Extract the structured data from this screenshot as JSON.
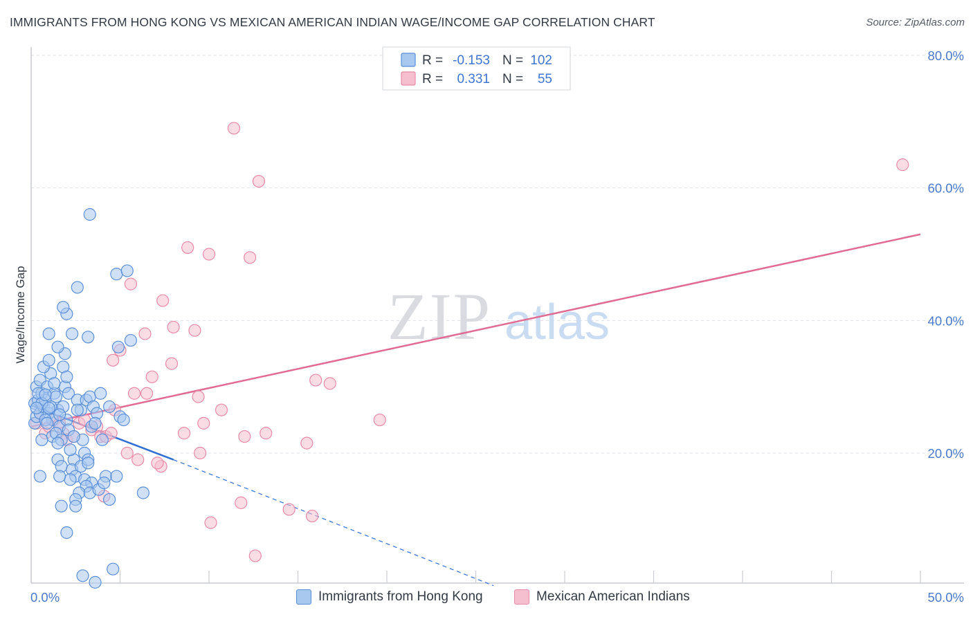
{
  "title": "IMMIGRANTS FROM HONG KONG VS MEXICAN AMERICAN INDIAN WAGE/INCOME GAP CORRELATION CHART",
  "source": "Source: ZipAtlas.com",
  "watermark": {
    "zip": "ZIP",
    "atlas": "atlas"
  },
  "colors": {
    "blue_fill": "#a9c8f0",
    "blue_stroke": "#5a8fd8",
    "blue_line": "#2f6fd1",
    "pink_fill": "#f6bfd0",
    "pink_stroke": "#e88aa7",
    "pink_line": "#e06b93",
    "axis_label": "#4a7ac9",
    "grid": "#dcdfe4"
  },
  "stats_box": {
    "rows": [
      {
        "r_label": "R =",
        "r_value": "-0.153",
        "n_label": "N =",
        "n_value": "102"
      },
      {
        "r_label": "R =",
        "r_value": "0.331",
        "n_label": "N =",
        "n_value": "55"
      }
    ]
  },
  "chart_data": {
    "type": "scatter",
    "title": "IMMIGRANTS FROM HONG KONG VS MEXICAN AMERICAN INDIAN WAGE/INCOME GAP CORRELATION CHART",
    "xlabel": "",
    "ylabel": "Wage/Income Gap",
    "xlim": [
      0,
      50
    ],
    "ylim": [
      0,
      82
    ],
    "x_ticks": [
      {
        "value": 0,
        "label": "0.0%"
      },
      {
        "value": 50,
        "label": "50.0%"
      }
    ],
    "y_ticks": [
      {
        "value": 20,
        "label": "20.0%"
      },
      {
        "value": 40,
        "label": "40.0%"
      },
      {
        "value": 60,
        "label": "60.0%"
      },
      {
        "value": 80,
        "label": "80.0%"
      }
    ],
    "legend": [
      "Immigrants from Hong Kong",
      "Mexican American Indians"
    ],
    "series": [
      {
        "name": "Immigrants from Hong Kong",
        "color": "#5a8fd8",
        "trend": {
          "x0": 0,
          "y0": 27.2,
          "x1": 8,
          "y1": 19.0,
          "dash_to_x": 26,
          "dash_to_y": 0
        },
        "points": [
          [
            0.2,
            24.5
          ],
          [
            0.3,
            25.5
          ],
          [
            0.2,
            27.5
          ],
          [
            0.4,
            28.0
          ],
          [
            0.5,
            26.0
          ],
          [
            0.3,
            30.0
          ],
          [
            0.6,
            29.0
          ],
          [
            0.5,
            31.0
          ],
          [
            0.7,
            27.0
          ],
          [
            0.8,
            28.0
          ],
          [
            1.0,
            26.0
          ],
          [
            1.2,
            25.0
          ],
          [
            0.9,
            30.0
          ],
          [
            1.1,
            32.0
          ],
          [
            0.7,
            33.0
          ],
          [
            1.3,
            29.0
          ],
          [
            1.0,
            34.0
          ],
          [
            1.5,
            26.5
          ],
          [
            1.4,
            28.5
          ],
          [
            1.6,
            24.0
          ],
          [
            1.2,
            22.5
          ],
          [
            1.4,
            23.0
          ],
          [
            1.7,
            22.0
          ],
          [
            2.0,
            25.0
          ],
          [
            1.8,
            27.0
          ],
          [
            1.9,
            30.0
          ],
          [
            1.8,
            33.0
          ],
          [
            1.9,
            35.0
          ],
          [
            1.5,
            36.0
          ],
          [
            1.0,
            38.0
          ],
          [
            2.0,
            41.0
          ],
          [
            1.8,
            42.0
          ],
          [
            2.6,
            45.0
          ],
          [
            3.2,
            37.5
          ],
          [
            2.3,
            38.0
          ],
          [
            2.0,
            31.5
          ],
          [
            2.1,
            29.0
          ],
          [
            2.6,
            28.0
          ],
          [
            2.8,
            26.5
          ],
          [
            3.1,
            28.0
          ],
          [
            3.3,
            28.5
          ],
          [
            3.5,
            27.0
          ],
          [
            3.7,
            26.0
          ],
          [
            3.4,
            24.0
          ],
          [
            3.6,
            24.5
          ],
          [
            2.9,
            22.0
          ],
          [
            2.4,
            19.0
          ],
          [
            1.5,
            19.0
          ],
          [
            1.7,
            18.0
          ],
          [
            2.3,
            17.5
          ],
          [
            2.5,
            16.5
          ],
          [
            2.2,
            16.0
          ],
          [
            2.8,
            18.0
          ],
          [
            3.0,
            16.0
          ],
          [
            3.4,
            15.5
          ],
          [
            3.1,
            15.0
          ],
          [
            2.7,
            14.0
          ],
          [
            2.5,
            13.0
          ],
          [
            3.3,
            14.0
          ],
          [
            3.8,
            14.5
          ],
          [
            4.2,
            16.5
          ],
          [
            4.4,
            13.0
          ],
          [
            4.1,
            15.5
          ],
          [
            4.8,
            16.5
          ],
          [
            5.0,
            25.5
          ],
          [
            4.9,
            36.0
          ],
          [
            5.6,
            37.0
          ],
          [
            4.8,
            47.0
          ],
          [
            5.4,
            47.5
          ],
          [
            3.3,
            56.0
          ],
          [
            6.3,
            14.0
          ],
          [
            3.0,
            20.0
          ],
          [
            3.2,
            19.0
          ],
          [
            2.2,
            20.5
          ],
          [
            1.6,
            16.5
          ],
          [
            0.5,
            16.5
          ],
          [
            1.7,
            12.0
          ],
          [
            2.5,
            12.0
          ],
          [
            2.0,
            8.0
          ],
          [
            2.9,
            1.5
          ],
          [
            3.6,
            0.5
          ],
          [
            4.6,
            2.5
          ],
          [
            0.6,
            22.0
          ],
          [
            0.8,
            25.0
          ],
          [
            1.1,
            27.0
          ],
          [
            0.4,
            29.0
          ],
          [
            0.9,
            24.5
          ],
          [
            1.3,
            30.5
          ],
          [
            0.6,
            27.5
          ],
          [
            1.5,
            21.5
          ],
          [
            2.6,
            26.5
          ],
          [
            3.9,
            29.0
          ],
          [
            4.4,
            27.0
          ],
          [
            5.2,
            25.0
          ],
          [
            2.1,
            23.5
          ],
          [
            1.0,
            26.8
          ],
          [
            0.3,
            26.8
          ],
          [
            0.8,
            28.8
          ],
          [
            1.6,
            25.8
          ],
          [
            2.4,
            22.5
          ],
          [
            4.0,
            22.0
          ],
          [
            3.2,
            18.5
          ]
        ]
      },
      {
        "name": "Mexican American Indians",
        "color": "#e88aa7",
        "trend": {
          "x0": 0,
          "y0": 24.0,
          "x1": 50,
          "y1": 53.0
        },
        "points": [
          [
            0.3,
            24.5
          ],
          [
            0.5,
            26.0
          ],
          [
            0.8,
            23.0
          ],
          [
            1.0,
            24.0
          ],
          [
            1.3,
            25.0
          ],
          [
            1.6,
            24.5
          ],
          [
            1.8,
            23.0
          ],
          [
            2.0,
            22.0
          ],
          [
            2.4,
            22.5
          ],
          [
            2.7,
            24.5
          ],
          [
            3.0,
            25.0
          ],
          [
            3.4,
            23.5
          ],
          [
            3.7,
            24.0
          ],
          [
            3.9,
            22.5
          ],
          [
            4.2,
            22.5
          ],
          [
            4.5,
            23.0
          ],
          [
            4.7,
            26.5
          ],
          [
            5.0,
            35.5
          ],
          [
            4.6,
            34.0
          ],
          [
            5.6,
            45.5
          ],
          [
            5.8,
            29.0
          ],
          [
            6.4,
            38.0
          ],
          [
            6.5,
            29.0
          ],
          [
            6.8,
            31.5
          ],
          [
            7.4,
            43.0
          ],
          [
            8.0,
            39.0
          ],
          [
            7.9,
            33.5
          ],
          [
            8.6,
            23.0
          ],
          [
            8.8,
            51.0
          ],
          [
            9.2,
            38.5
          ],
          [
            9.4,
            28.5
          ],
          [
            9.7,
            24.5
          ],
          [
            10.0,
            50.0
          ],
          [
            10.7,
            26.5
          ],
          [
            11.4,
            69.0
          ],
          [
            12.0,
            22.5
          ],
          [
            12.3,
            49.5
          ],
          [
            12.8,
            61.0
          ],
          [
            13.2,
            23.0
          ],
          [
            15.5,
            21.5
          ],
          [
            16.0,
            31.0
          ],
          [
            16.8,
            30.5
          ],
          [
            19.6,
            25.0
          ],
          [
            11.8,
            12.5
          ],
          [
            10.1,
            9.5
          ],
          [
            12.6,
            4.5
          ],
          [
            14.5,
            11.5
          ],
          [
            15.8,
            10.5
          ],
          [
            7.3,
            18.0
          ],
          [
            7.1,
            18.5
          ],
          [
            6.0,
            19.0
          ],
          [
            5.4,
            20.0
          ],
          [
            4.1,
            13.5
          ],
          [
            9.5,
            20.0
          ],
          [
            49.0,
            63.5
          ]
        ]
      }
    ]
  }
}
